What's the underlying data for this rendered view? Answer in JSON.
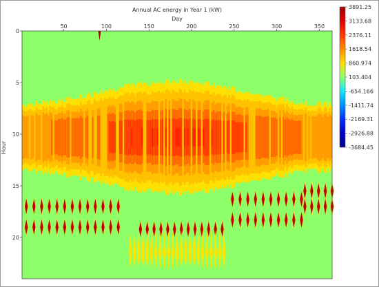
{
  "chart_data": {
    "type": "heatmap",
    "title": "Annual AC energy in Year 1 (kW)",
    "xlabel": "Day",
    "ylabel": "Hour",
    "xlim": [
      1,
      365
    ],
    "ylim": [
      0,
      24
    ],
    "xticks": [
      "50",
      "100",
      "150",
      "200",
      "250",
      "300",
      "350"
    ],
    "yticks": [
      "0",
      "5",
      "10",
      "15",
      "20"
    ],
    "colorbar": {
      "labels": [
        "3891.25",
        "3133.68",
        "2376.11",
        "1618.54",
        "860.974",
        "103.404",
        "-654.166",
        "-1411.74",
        "-2169.31",
        "-2926.88",
        "-3684.45"
      ],
      "min": -3684.45,
      "max": 3891.25,
      "colors": [
        "#9b0000",
        "#e10000",
        "#ff3a00",
        "#ff8a00",
        "#ffdd00",
        "#8cff6a",
        "#11e7ff",
        "#0090ff",
        "#002fff",
        "#0000c8",
        "#00008a"
      ]
    },
    "description_values": {
      "background": 103.404,
      "midday_peak": 3133.68,
      "night_dips_max": 3891.25
    },
    "grid": false,
    "legend": "right colorbar"
  }
}
